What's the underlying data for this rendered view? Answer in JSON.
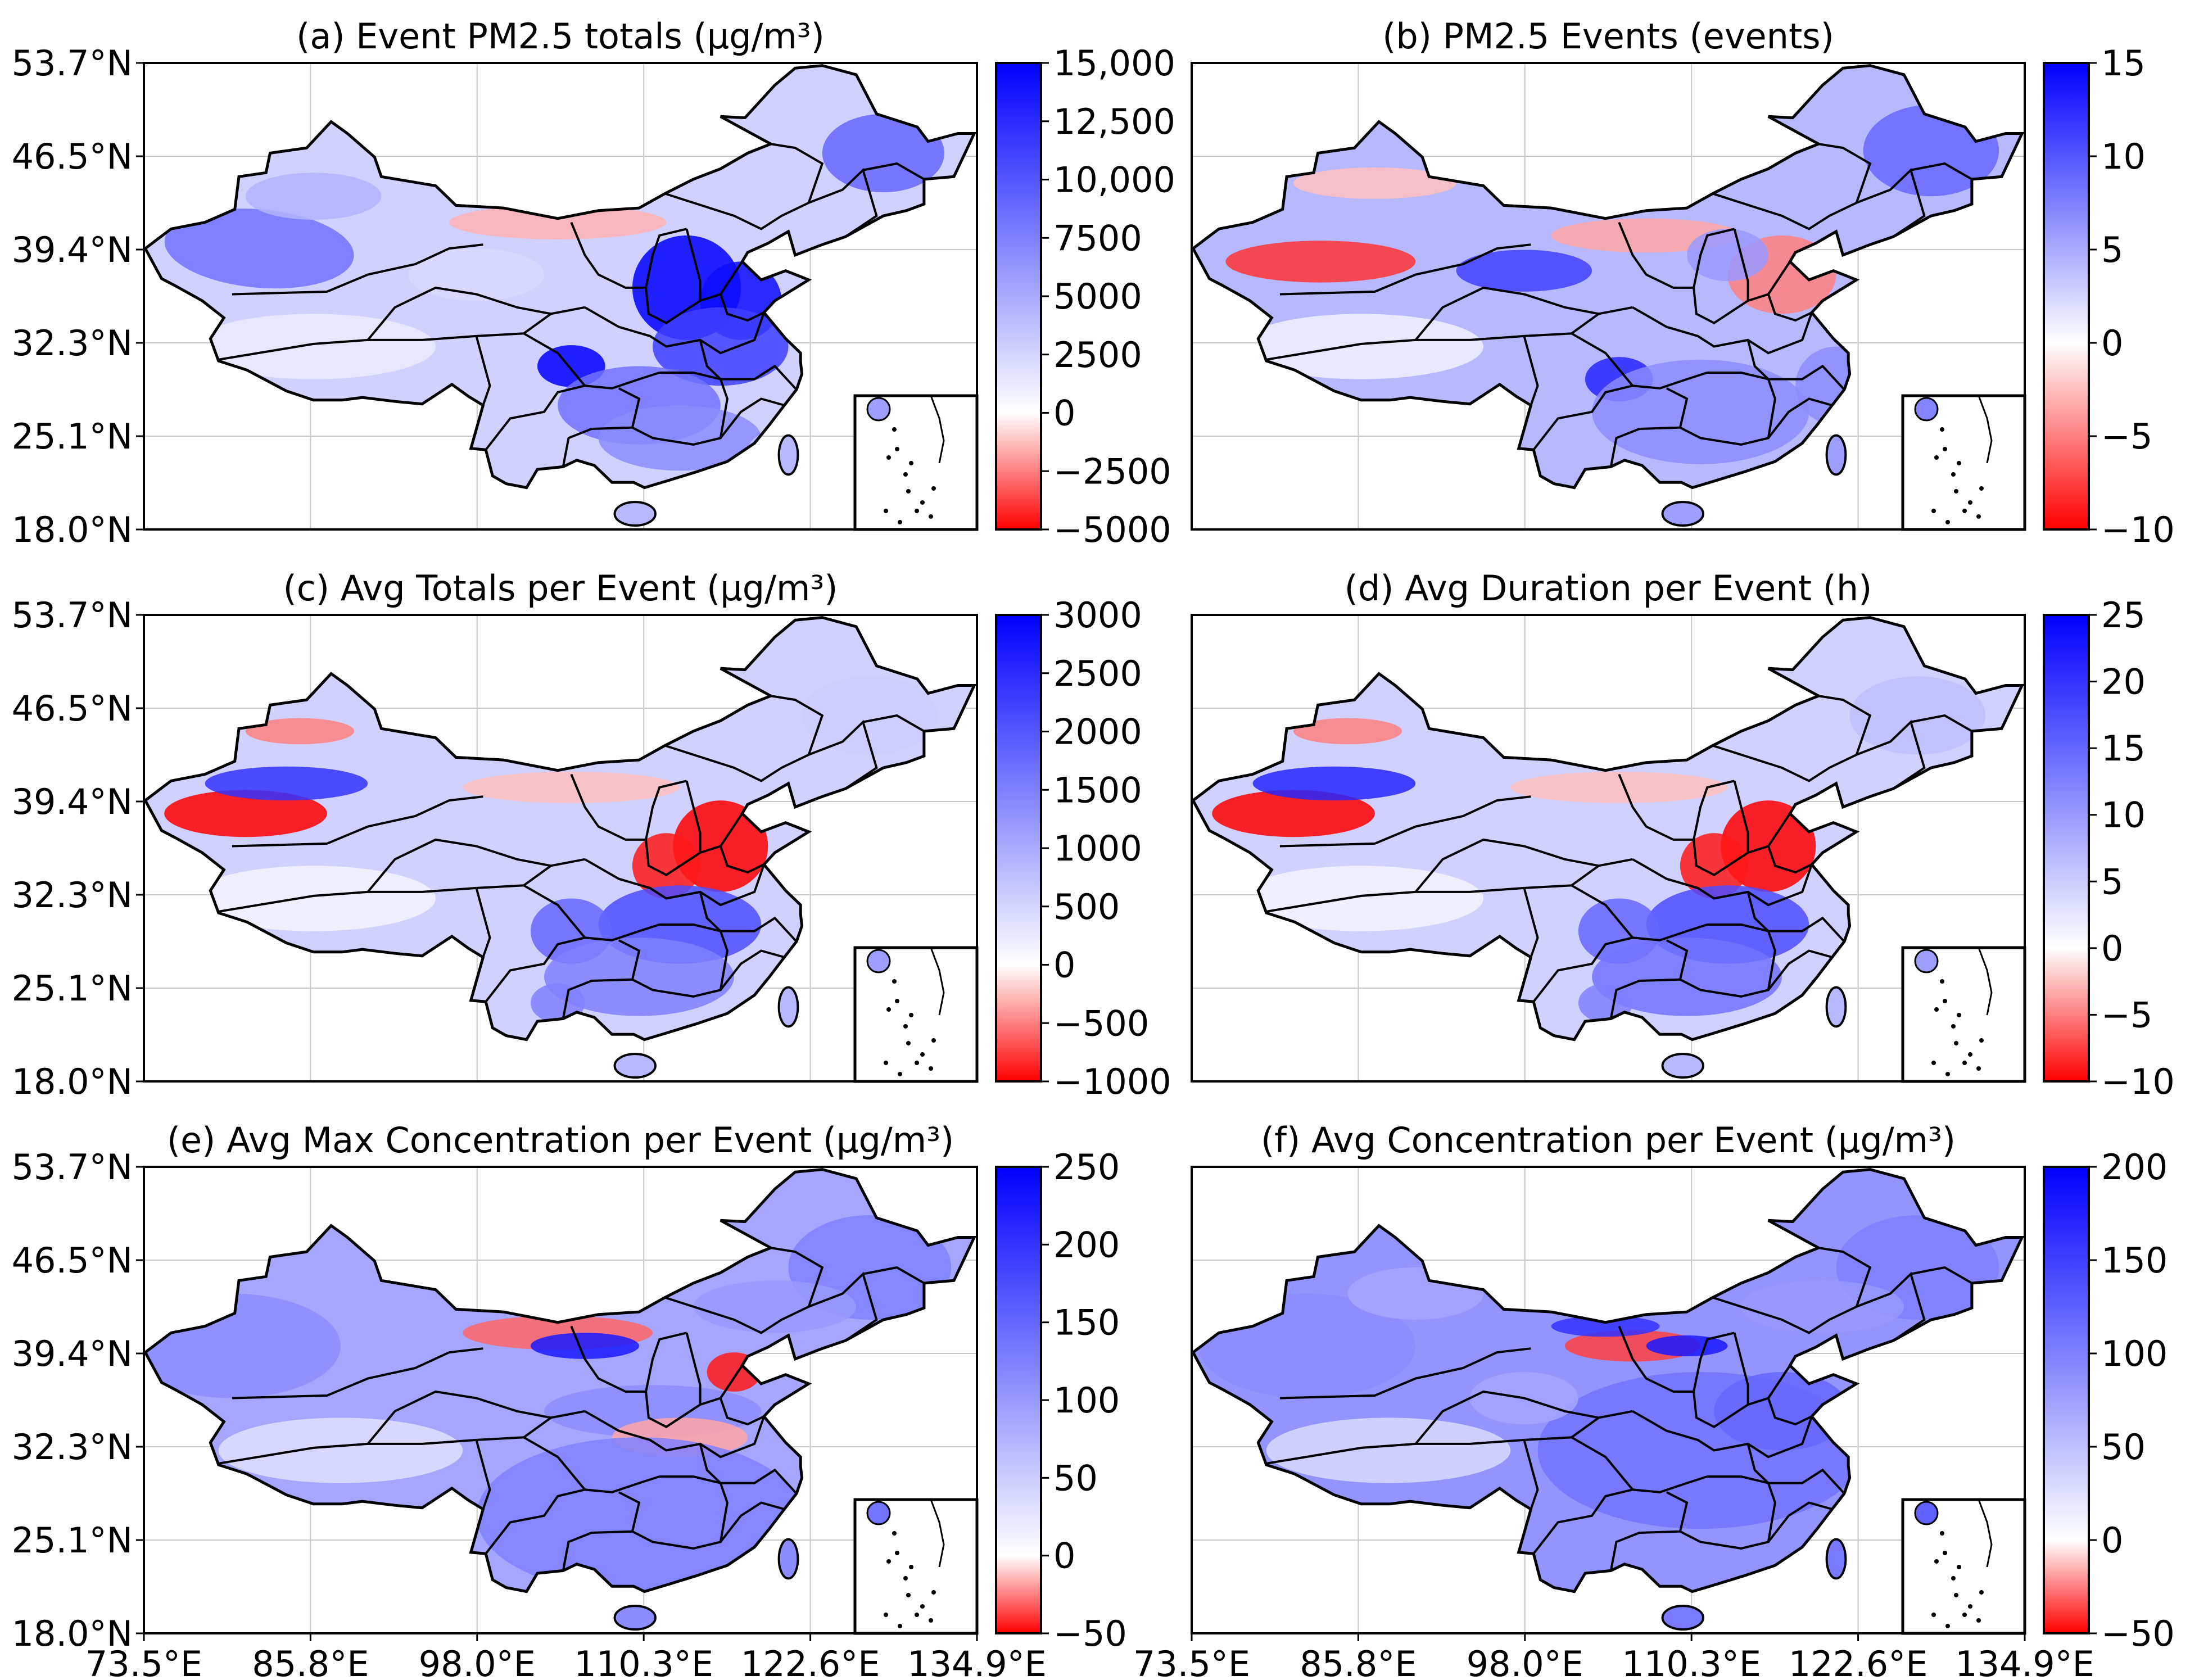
{
  "figure": {
    "lat_ticks": [
      "53.7°N",
      "46.5°N",
      "39.4°N",
      "32.3°N",
      "25.1°N",
      "18.0°N"
    ],
    "lon_ticks": [
      "73.5°E",
      "85.8°E",
      "98.0°E",
      "110.3°E",
      "122.6°E",
      "134.9°E"
    ]
  },
  "chart_data": [
    {
      "type": "heatmap",
      "id": "a",
      "title": "(a) Event PM2.5 totals (μg/m³)",
      "colorbar": {
        "ticks": [
          "15,000",
          "12,500",
          "10,000",
          "7500",
          "5000",
          "2500",
          "0",
          "−2500",
          "−5000"
        ],
        "range": [
          -5000,
          15000
        ],
        "zero": 0,
        "colors": {
          "neg": "#ff0000",
          "zero": "#ffffff",
          "pos": "#0000ff"
        }
      },
      "xlim": [
        73.5,
        134.9
      ],
      "ylim": [
        18.0,
        53.7
      ]
    },
    {
      "type": "heatmap",
      "id": "b",
      "title": "(b) PM2.5 Events (events)",
      "colorbar": {
        "ticks": [
          "15",
          "10",
          "5",
          "0",
          "−5",
          "−10"
        ],
        "range": [
          -10,
          15
        ],
        "zero": 0,
        "colors": {
          "neg": "#ff0000",
          "zero": "#ffffff",
          "pos": "#0000ff"
        }
      },
      "xlim": [
        73.5,
        134.9
      ],
      "ylim": [
        18.0,
        53.7
      ]
    },
    {
      "type": "heatmap",
      "id": "c",
      "title": "(c) Avg Totals per Event (μg/m³)",
      "colorbar": {
        "ticks": [
          "3000",
          "2500",
          "2000",
          "1500",
          "1000",
          "500",
          "0",
          "−500",
          "−1000"
        ],
        "range": [
          -1000,
          3000
        ],
        "zero": 0,
        "colors": {
          "neg": "#ff0000",
          "zero": "#ffffff",
          "pos": "#0000ff"
        }
      },
      "xlim": [
        73.5,
        134.9
      ],
      "ylim": [
        18.0,
        53.7
      ]
    },
    {
      "type": "heatmap",
      "id": "d",
      "title": "(d) Avg Duration per Event (h)",
      "colorbar": {
        "ticks": [
          "25",
          "20",
          "15",
          "10",
          "5",
          "0",
          "−5",
          "−10"
        ],
        "range": [
          -10,
          25
        ],
        "zero": 0,
        "colors": {
          "neg": "#ff0000",
          "zero": "#ffffff",
          "pos": "#0000ff"
        }
      },
      "xlim": [
        73.5,
        134.9
      ],
      "ylim": [
        18.0,
        53.7
      ]
    },
    {
      "type": "heatmap",
      "id": "e",
      "title": "(e) Avg Max Concentration per Event (μg/m³)",
      "colorbar": {
        "ticks": [
          "250",
          "200",
          "150",
          "100",
          "50",
          "0",
          "−50"
        ],
        "range": [
          -50,
          250
        ],
        "zero": 0,
        "colors": {
          "neg": "#ff0000",
          "zero": "#ffffff",
          "pos": "#0000ff"
        }
      },
      "xlim": [
        73.5,
        134.9
      ],
      "ylim": [
        18.0,
        53.7
      ]
    },
    {
      "type": "heatmap",
      "id": "f",
      "title": "(f) Avg Concentration per Event (μg/m³)",
      "colorbar": {
        "ticks": [
          "200",
          "150",
          "100",
          "50",
          "0",
          "−50"
        ],
        "range": [
          -50,
          200
        ],
        "zero": 0,
        "colors": {
          "neg": "#ff0000",
          "zero": "#ffffff",
          "pos": "#0000ff"
        }
      },
      "xlim": [
        73.5,
        134.9
      ],
      "ylim": [
        18.0,
        53.7
      ]
    }
  ]
}
